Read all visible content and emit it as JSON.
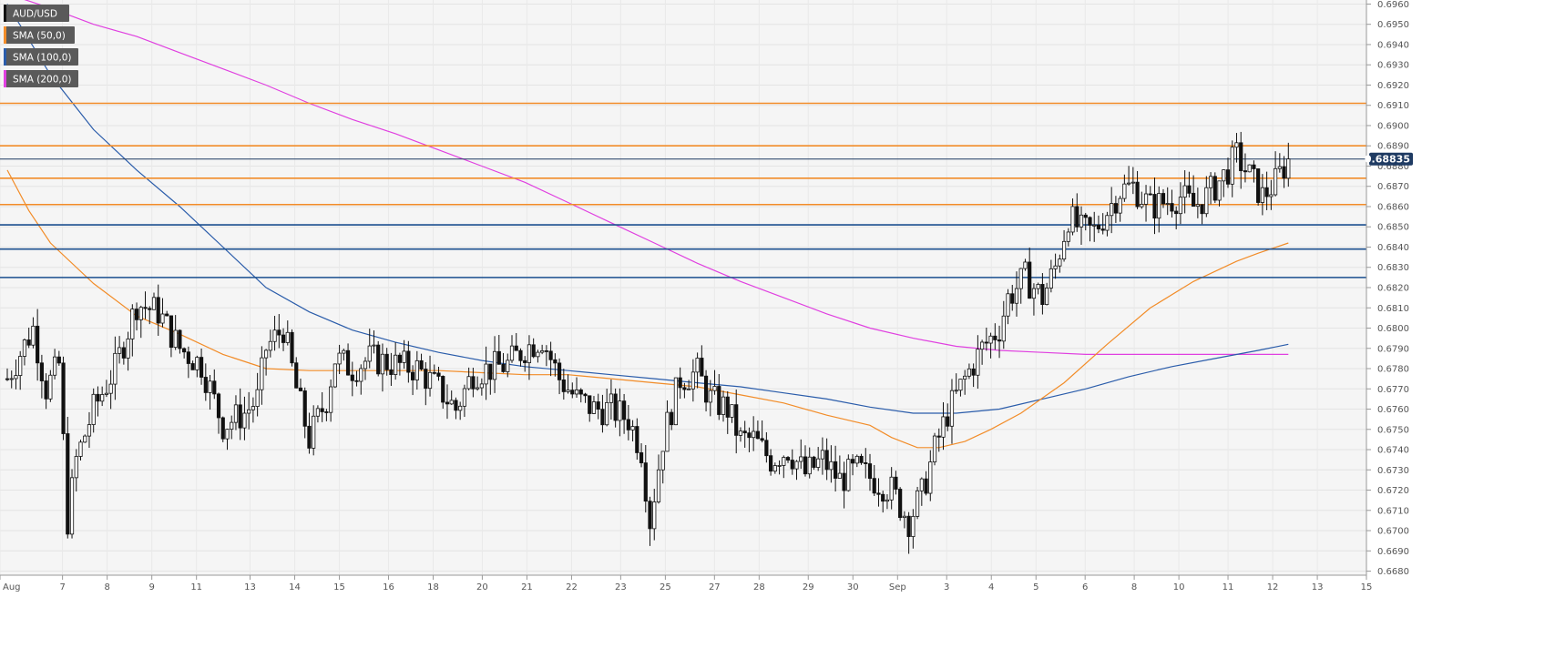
{
  "chart_data": {
    "type": "candlestick",
    "symbol": "AUD/USD",
    "ylim": [
      0.6678,
      0.6962
    ],
    "y_ticks": [
      "0.6960",
      "0.6950",
      "0.6940",
      "0.6930",
      "0.6920",
      "0.6910",
      "0.6900",
      "0.6890",
      "0.6880",
      "0.6870",
      "0.6860",
      "0.6850",
      "0.6840",
      "0.6830",
      "0.6820",
      "0.6810",
      "0.6800",
      "0.6790",
      "0.6780",
      "0.6770",
      "0.6760",
      "0.6750",
      "0.6740",
      "0.6730",
      "0.6720",
      "0.6710",
      "0.6700",
      "0.6690",
      "0.6680"
    ],
    "x_ticks": [
      {
        "label": "Aug",
        "x": 0
      },
      {
        "label": "7",
        "x": 14
      },
      {
        "label": "8",
        "x": 24
      },
      {
        "label": "9",
        "x": 34
      },
      {
        "label": "11",
        "x": 44
      },
      {
        "label": "13",
        "x": 56
      },
      {
        "label": "14",
        "x": 66
      },
      {
        "label": "15",
        "x": 76
      },
      {
        "label": "16",
        "x": 87
      },
      {
        "label": "18",
        "x": 97
      },
      {
        "label": "20",
        "x": 108
      },
      {
        "label": "21",
        "x": 118
      },
      {
        "label": "22",
        "x": 128
      },
      {
        "label": "23",
        "x": 139
      },
      {
        "label": "25",
        "x": 149
      },
      {
        "label": "27",
        "x": 160
      },
      {
        "label": "28",
        "x": 170
      },
      {
        "label": "29",
        "x": 181
      },
      {
        "label": "30",
        "x": 191
      },
      {
        "label": "Sep",
        "x": 201
      },
      {
        "label": "3",
        "x": 212
      },
      {
        "label": "4",
        "x": 222
      },
      {
        "label": "5",
        "x": 232
      },
      {
        "label": "6",
        "x": 243
      },
      {
        "label": "8",
        "x": 254
      },
      {
        "label": "10",
        "x": 264
      },
      {
        "label": "11",
        "x": 275
      },
      {
        "label": "12",
        "x": 285
      },
      {
        "label": "13",
        "x": 295
      },
      {
        "label": "15",
        "x": 306
      }
    ],
    "last_price": "0.68835",
    "horizontal_levels": [
      {
        "value": 0.6911,
        "color": "#f28c28"
      },
      {
        "value": 0.689,
        "color": "#f28c28"
      },
      {
        "value": 0.6874,
        "color": "#f28c28"
      },
      {
        "value": 0.6861,
        "color": "#f28c28"
      },
      {
        "value": 0.6851,
        "color": "#1b4f8f"
      },
      {
        "value": 0.6839,
        "color": "#1b4f8f"
      },
      {
        "value": 0.6825,
        "color": "#1b4f8f"
      }
    ],
    "legend": [
      {
        "label": "AUD/USD",
        "color": "#111111"
      },
      {
        "label": "SMA (50,0)",
        "color": "#f28c28"
      },
      {
        "label": "SMA (100,0)",
        "color": "#2a5caa"
      },
      {
        "label": "SMA (200,0)",
        "color": "#e040e0"
      }
    ],
    "colors": {
      "up": "#ffffff",
      "down": "#111111",
      "last_price_line": "#1f3b63",
      "last_price_box": "#1f3b63"
    },
    "anchors": [
      [
        0,
        0.6775
      ],
      [
        6,
        0.68
      ],
      [
        9,
        0.677
      ],
      [
        12,
        0.6782
      ],
      [
        14,
        0.6705
      ],
      [
        16,
        0.6735
      ],
      [
        20,
        0.676
      ],
      [
        25,
        0.678
      ],
      [
        30,
        0.6812
      ],
      [
        35,
        0.6808
      ],
      [
        40,
        0.679
      ],
      [
        45,
        0.6782
      ],
      [
        50,
        0.6752
      ],
      [
        55,
        0.6758
      ],
      [
        58,
        0.6765
      ],
      [
        60,
        0.679
      ],
      [
        64,
        0.68
      ],
      [
        67,
        0.677
      ],
      [
        70,
        0.6745
      ],
      [
        74,
        0.6765
      ],
      [
        76,
        0.6785
      ],
      [
        80,
        0.678
      ],
      [
        84,
        0.6785
      ],
      [
        90,
        0.6782
      ],
      [
        95,
        0.678
      ],
      [
        100,
        0.677
      ],
      [
        104,
        0.676
      ],
      [
        108,
        0.6778
      ],
      [
        112,
        0.678
      ],
      [
        116,
        0.6782
      ],
      [
        120,
        0.679
      ],
      [
        124,
        0.6795
      ],
      [
        128,
        0.6775
      ],
      [
        132,
        0.6765
      ],
      [
        136,
        0.676
      ],
      [
        140,
        0.676
      ],
      [
        144,
        0.6755
      ],
      [
        147,
        0.674
      ],
      [
        149,
        0.6705
      ],
      [
        152,
        0.6745
      ],
      [
        156,
        0.6775
      ],
      [
        160,
        0.6778
      ],
      [
        163,
        0.6765
      ],
      [
        167,
        0.676
      ],
      [
        170,
        0.6745
      ],
      [
        173,
        0.6745
      ],
      [
        177,
        0.6735
      ],
      [
        181,
        0.674
      ],
      [
        185,
        0.6728
      ],
      [
        189,
        0.6735
      ],
      [
        193,
        0.6725
      ],
      [
        197,
        0.673
      ],
      [
        201,
        0.6725
      ],
      [
        205,
        0.672
      ],
      [
        209,
        0.6705
      ],
      [
        212,
        0.6718
      ],
      [
        215,
        0.674
      ],
      [
        218,
        0.6758
      ],
      [
        222,
        0.6775
      ],
      [
        226,
        0.679
      ],
      [
        230,
        0.68
      ],
      [
        232,
        0.6815
      ],
      [
        236,
        0.6825
      ],
      [
        240,
        0.6815
      ],
      [
        243,
        0.683
      ],
      [
        246,
        0.6855
      ],
      [
        249,
        0.6848
      ],
      [
        252,
        0.6848
      ],
      [
        255,
        0.6858
      ],
      [
        258,
        0.6868
      ],
      [
        261,
        0.687
      ],
      [
        265,
        0.686
      ],
      [
        268,
        0.6862
      ],
      [
        272,
        0.6865
      ],
      [
        275,
        0.686
      ],
      [
        278,
        0.6865
      ],
      [
        282,
        0.6875
      ],
      [
        285,
        0.6885
      ],
      [
        288,
        0.6875
      ],
      [
        291,
        0.6865
      ],
      [
        294,
        0.6872
      ],
      [
        297,
        0.68835
      ]
    ],
    "sma50": [
      [
        0,
        0.6878
      ],
      [
        5,
        0.6858
      ],
      [
        10,
        0.6842
      ],
      [
        20,
        0.6822
      ],
      [
        30,
        0.6806
      ],
      [
        40,
        0.6797
      ],
      [
        50,
        0.6787
      ],
      [
        60,
        0.678
      ],
      [
        70,
        0.6779
      ],
      [
        80,
        0.6779
      ],
      [
        90,
        0.6779
      ],
      [
        100,
        0.6779
      ],
      [
        110,
        0.6778
      ],
      [
        120,
        0.6777
      ],
      [
        130,
        0.6777
      ],
      [
        140,
        0.6775
      ],
      [
        150,
        0.6773
      ],
      [
        160,
        0.6771
      ],
      [
        170,
        0.6767
      ],
      [
        180,
        0.6763
      ],
      [
        190,
        0.6757
      ],
      [
        200,
        0.6752
      ],
      [
        205,
        0.6746
      ],
      [
        211,
        0.6741
      ],
      [
        216,
        0.6741
      ],
      [
        222,
        0.6744
      ],
      [
        228,
        0.675
      ],
      [
        235,
        0.6758
      ],
      [
        245,
        0.6773
      ],
      [
        255,
        0.6792
      ],
      [
        265,
        0.681
      ],
      [
        275,
        0.6823
      ],
      [
        285,
        0.6833
      ],
      [
        290,
        0.6837
      ],
      [
        297,
        0.6842
      ]
    ],
    "sma100": [
      [
        0,
        0.696
      ],
      [
        10,
        0.6925
      ],
      [
        20,
        0.6898
      ],
      [
        30,
        0.6878
      ],
      [
        40,
        0.686
      ],
      [
        50,
        0.684
      ],
      [
        60,
        0.682
      ],
      [
        70,
        0.6808
      ],
      [
        80,
        0.6799
      ],
      [
        90,
        0.6793
      ],
      [
        100,
        0.6788
      ],
      [
        110,
        0.6784
      ],
      [
        120,
        0.6781
      ],
      [
        130,
        0.6779
      ],
      [
        140,
        0.6777
      ],
      [
        150,
        0.6775
      ],
      [
        160,
        0.6773
      ],
      [
        170,
        0.6771
      ],
      [
        180,
        0.6768
      ],
      [
        190,
        0.6765
      ],
      [
        200,
        0.6761
      ],
      [
        210,
        0.6758
      ],
      [
        220,
        0.6758
      ],
      [
        230,
        0.676
      ],
      [
        240,
        0.6765
      ],
      [
        250,
        0.677
      ],
      [
        260,
        0.6776
      ],
      [
        270,
        0.6781
      ],
      [
        280,
        0.6785
      ],
      [
        290,
        0.6789
      ],
      [
        297,
        0.6792
      ]
    ],
    "sma200": [
      [
        0,
        0.6965
      ],
      [
        10,
        0.6958
      ],
      [
        20,
        0.695
      ],
      [
        30,
        0.6944
      ],
      [
        40,
        0.6936
      ],
      [
        50,
        0.6928
      ],
      [
        60,
        0.692
      ],
      [
        70,
        0.6911
      ],
      [
        80,
        0.6903
      ],
      [
        90,
        0.6896
      ],
      [
        100,
        0.6888
      ],
      [
        110,
        0.688
      ],
      [
        120,
        0.6872
      ],
      [
        130,
        0.6862
      ],
      [
        140,
        0.6852
      ],
      [
        150,
        0.6842
      ],
      [
        160,
        0.6832
      ],
      [
        170,
        0.6823
      ],
      [
        180,
        0.6815
      ],
      [
        190,
        0.6807
      ],
      [
        200,
        0.68
      ],
      [
        210,
        0.6795
      ],
      [
        220,
        0.6791
      ],
      [
        230,
        0.6789
      ],
      [
        240,
        0.6788
      ],
      [
        250,
        0.6787
      ],
      [
        260,
        0.6787
      ],
      [
        270,
        0.6787
      ],
      [
        280,
        0.6787
      ],
      [
        290,
        0.6787
      ],
      [
        297,
        0.6787
      ]
    ]
  }
}
